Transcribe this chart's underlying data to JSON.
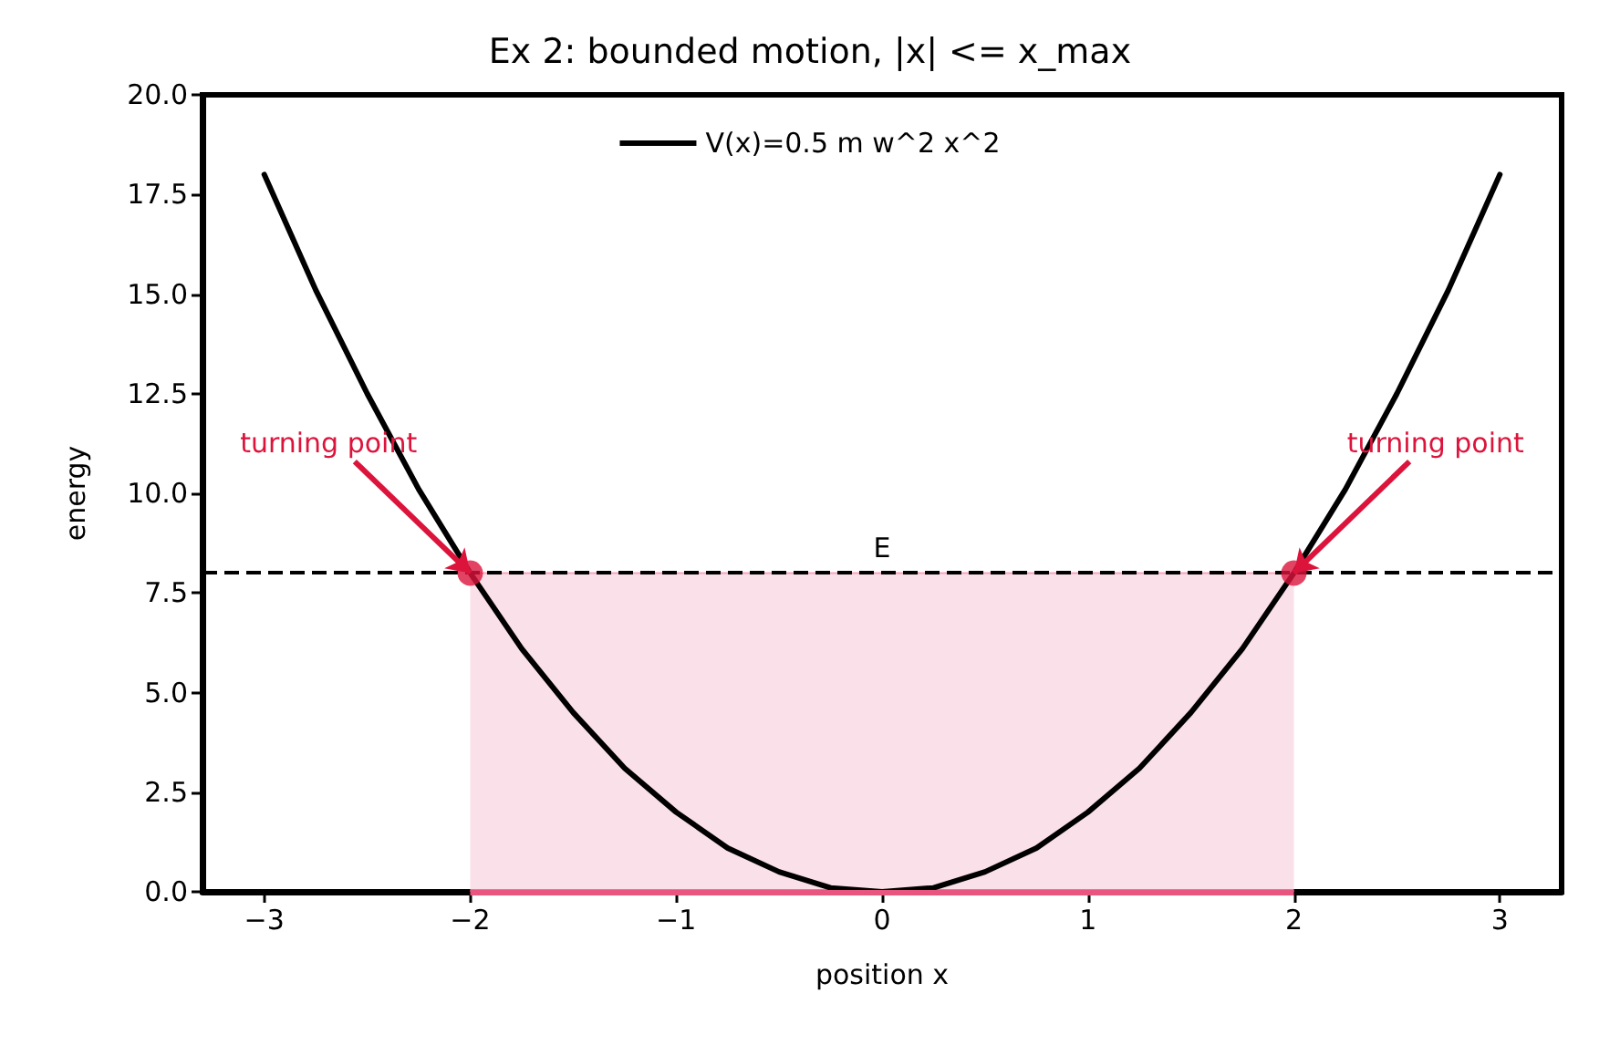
{
  "chart_data": {
    "type": "line",
    "title": "Ex 2: bounded motion, |x| <= x_max",
    "xlabel": "position x",
    "ylabel": "energy",
    "xlim": [
      -3.3,
      3.3
    ],
    "xticks": [
      {
        "value": -3,
        "label": "−3"
      },
      {
        "value": -2,
        "label": "−2"
      },
      {
        "value": -1,
        "label": "−1"
      },
      0,
      1,
      2,
      3
    ],
    "ylim": [
      0,
      20
    ],
    "yticks": [
      {
        "value": 0,
        "label": "0.0"
      },
      2.5,
      {
        "value": 5,
        "label": "5.0"
      },
      7.5,
      {
        "value": 10,
        "label": "10.0"
      },
      12.5,
      {
        "value": 15,
        "label": "15.0"
      },
      17.5,
      {
        "value": 20,
        "label": "20.0"
      }
    ],
    "grid": false,
    "legend": "top",
    "line_style": "solid",
    "marker": "none",
    "series": [
      {
        "name": "V(x)=0.5 m w^2 x^2",
        "color": "#000000",
        "x": [
          -3,
          -2.75,
          -2.5,
          -2.25,
          -2,
          -1.75,
          -1.5,
          -1.25,
          -1,
          -0.75,
          -0.5,
          -0.25,
          0,
          0.25,
          0.5,
          0.75,
          1,
          1.25,
          1.5,
          1.75,
          2,
          2.25,
          2.5,
          2.75,
          3
        ],
        "values": [
          18,
          15.1,
          12.5,
          10.1,
          8,
          6.1,
          4.5,
          3.1,
          2,
          1.1,
          0.5,
          0.1,
          0,
          0.1,
          0.5,
          1.1,
          2,
          3.1,
          4.5,
          6.1,
          8,
          10.1,
          12.5,
          15.1,
          18
        ]
      },
      {
        "type": "area",
        "color": "#f8d3de",
        "x": [
          -2,
          2
        ],
        "values": [
          8,
          8
        ]
      },
      {
        "type": "scatter",
        "color": "#dc143c",
        "marker": "circle",
        "x": [
          -2,
          2
        ],
        "values": [
          8,
          8
        ]
      }
    ],
    "ref_lines": [
      {
        "axis": "y",
        "value": 8,
        "label": "E",
        "color": "#000000",
        "line_style": "dashed"
      }
    ],
    "annotations": [
      {
        "text": "turning point",
        "x": -2,
        "y": 8
      },
      {
        "text": "turning point",
        "x": 2,
        "y": 8
      }
    ]
  }
}
